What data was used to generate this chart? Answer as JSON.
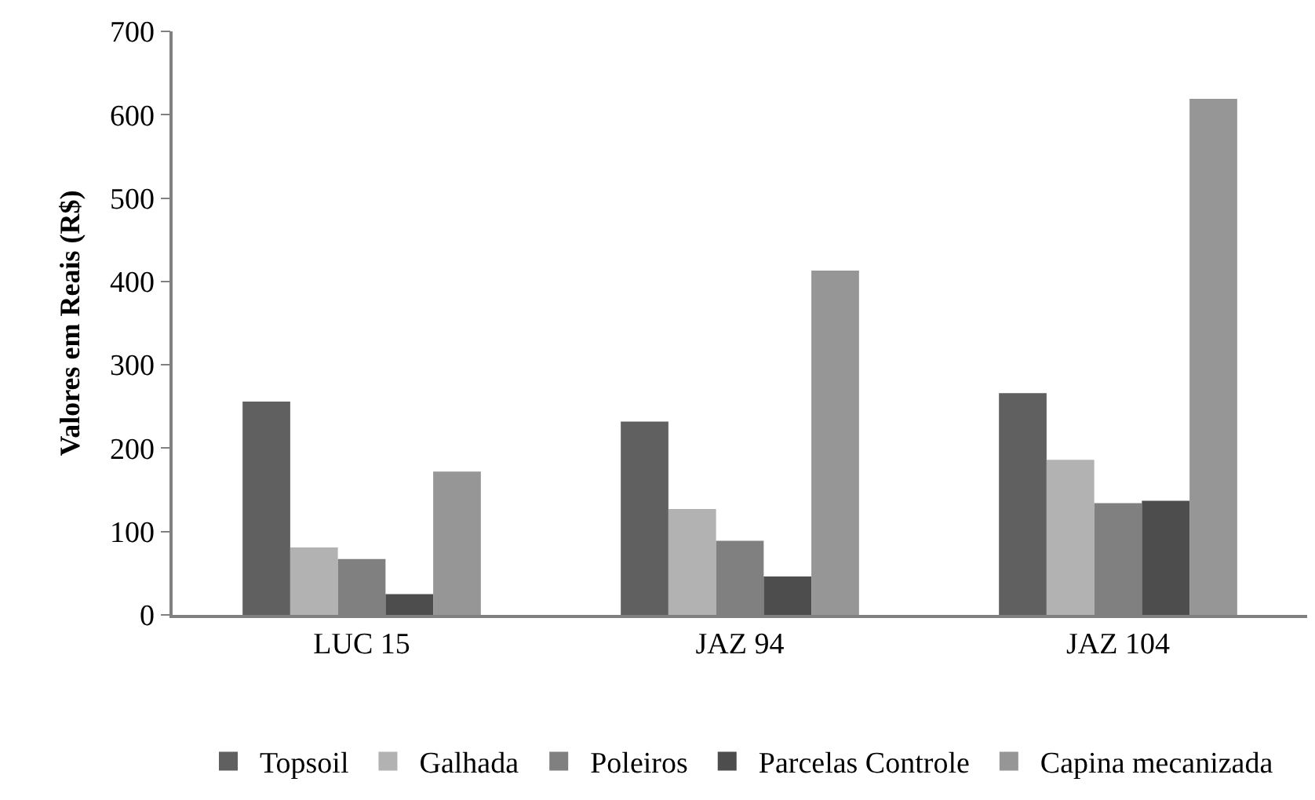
{
  "chart_data": {
    "type": "bar",
    "ylabel": "Valores em Reais (R$)",
    "categories": [
      "LUC 15",
      "JAZ 94",
      "JAZ 104"
    ],
    "series": [
      {
        "name": "Topsoil",
        "color": "#606060",
        "values": [
          256,
          232,
          266
        ]
      },
      {
        "name": "Galhada",
        "color": "#b2b2b2",
        "values": [
          81,
          127,
          186
        ]
      },
      {
        "name": "Poleiros",
        "color": "#808080",
        "values": [
          67,
          89,
          134
        ]
      },
      {
        "name": "Parcelas Controle",
        "color": "#4d4d4d",
        "values": [
          25,
          46,
          137
        ]
      },
      {
        "name": "Capina mecanizada",
        "color": "#969696",
        "values": [
          172,
          413,
          619
        ]
      }
    ],
    "ylim": [
      0,
      700
    ],
    "yticks": [
      0,
      100,
      200,
      300,
      400,
      500,
      600,
      700
    ],
    "grid": false,
    "legend": "bottom"
  }
}
